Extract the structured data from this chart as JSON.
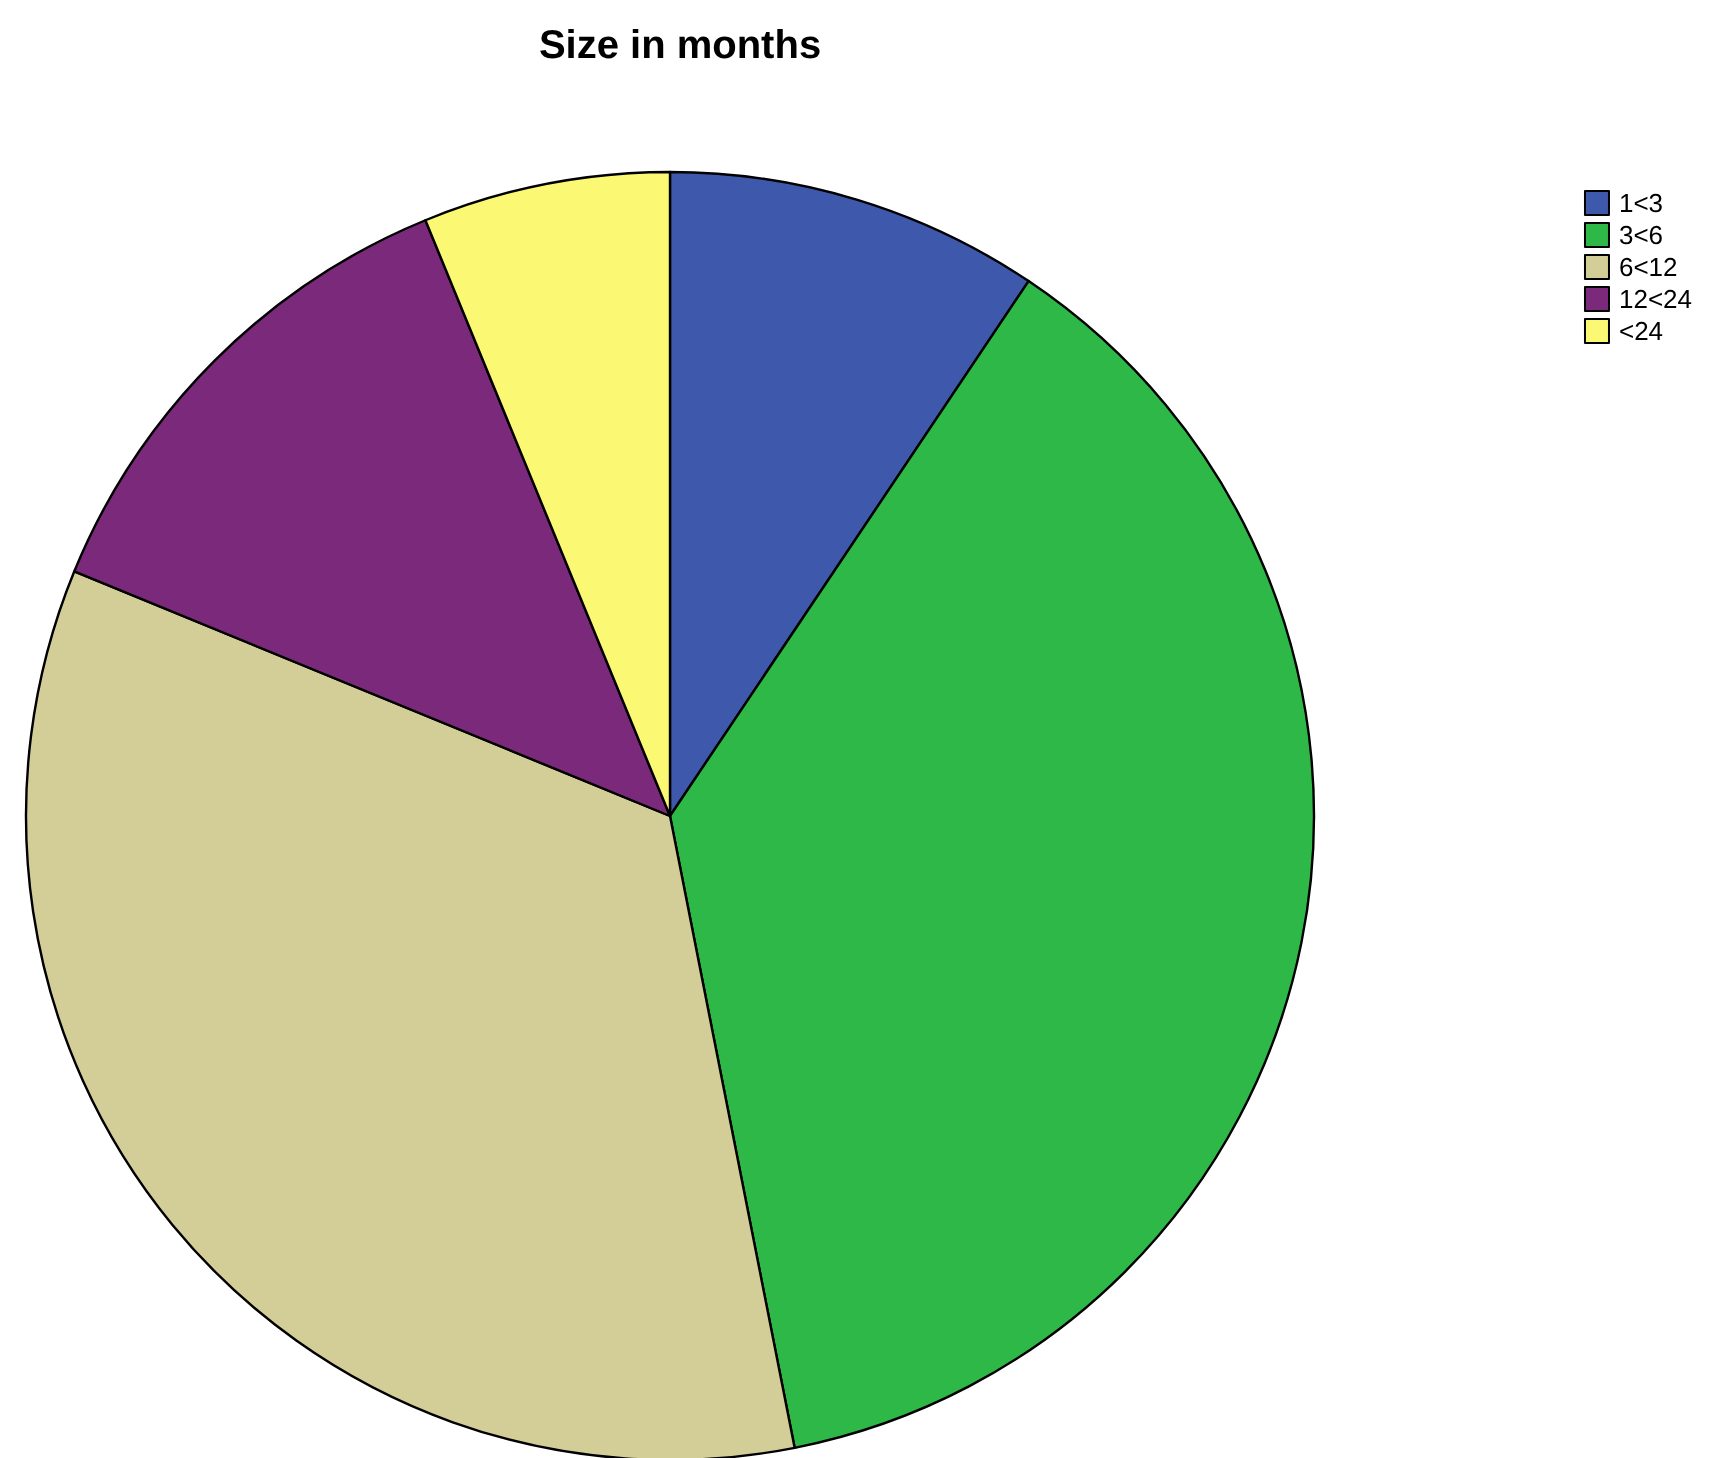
{
  "chart_data": {
    "type": "pie",
    "title": "Size in months",
    "categories": [
      "1<3",
      "3<6",
      "6<12",
      "12<24",
      "<24"
    ],
    "values": [
      9.4,
      37.5,
      34.3,
      12.6,
      6.2
    ],
    "colors": [
      "#3e58ac",
      "#2eb848",
      "#d3ce97",
      "#7b2a7b",
      "#fbf873"
    ],
    "legend": "top right"
  }
}
